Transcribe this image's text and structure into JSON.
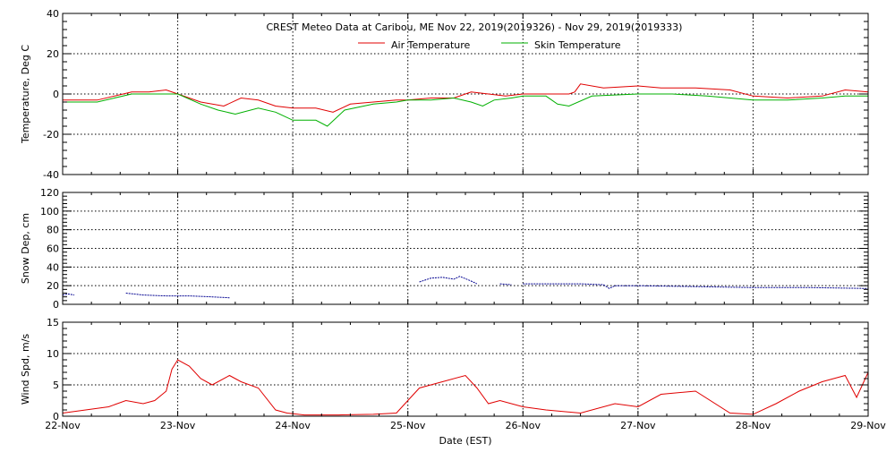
{
  "chart_data": [
    {
      "type": "line",
      "title": "CREST Meteo Data at Caribou, ME   Nov 22, 2019(2019326) - Nov 29, 2019(2019333)",
      "xlabel": "Date (EST)",
      "ylabel": "Temperature, Deg C",
      "xlim": [
        0,
        7
      ],
      "ylim": [
        -40,
        40
      ],
      "yticks": [
        -40,
        -20,
        0,
        20,
        40
      ],
      "grid": true,
      "legend": "top-center",
      "series": [
        {
          "name": "Air Temperature",
          "color": "#e00000",
          "x": [
            0.0,
            0.3,
            0.6,
            0.75,
            0.9,
            1.0,
            1.2,
            1.4,
            1.55,
            1.7,
            1.85,
            2.0,
            2.2,
            2.35,
            2.5,
            2.7,
            2.9,
            3.0,
            3.2,
            3.4,
            3.55,
            3.7,
            3.85,
            4.0,
            4.2,
            4.4,
            4.45,
            4.5,
            4.7,
            5.0,
            5.2,
            5.5,
            5.8,
            6.0,
            6.3,
            6.6,
            6.8,
            7.0
          ],
          "y": [
            -3,
            -3,
            1,
            1,
            2,
            0,
            -4,
            -6,
            -2,
            -3,
            -6,
            -7,
            -7,
            -9,
            -5,
            -4,
            -3,
            -3,
            -2,
            -2,
            1,
            0,
            -1,
            0,
            0,
            0,
            1,
            5,
            3,
            4,
            3,
            3,
            2,
            -1,
            -2,
            -1,
            2,
            1
          ]
        },
        {
          "name": "Skin Temperature",
          "color": "#00b000",
          "x": [
            0.0,
            0.3,
            0.6,
            0.75,
            0.9,
            1.0,
            1.2,
            1.35,
            1.5,
            1.7,
            1.85,
            2.0,
            2.2,
            2.3,
            2.45,
            2.7,
            2.9,
            3.0,
            3.2,
            3.4,
            3.55,
            3.65,
            3.75,
            3.9,
            4.0,
            4.2,
            4.3,
            4.4,
            4.6,
            5.0,
            5.3,
            5.6,
            5.8,
            6.0,
            6.3,
            6.6,
            6.8,
            7.0
          ],
          "y": [
            -4,
            -4,
            0,
            0,
            0,
            0,
            -5,
            -8,
            -10,
            -7,
            -9,
            -13,
            -13,
            -16,
            -8,
            -5,
            -4,
            -3,
            -3,
            -2,
            -4,
            -6,
            -3,
            -2,
            -1,
            -1,
            -5,
            -6,
            -1,
            0,
            0,
            -1,
            -2,
            -3,
            -3,
            -2,
            -1,
            -1
          ]
        }
      ]
    },
    {
      "type": "line",
      "ylabel": "Snow Dep, cm",
      "xlim": [
        0,
        7
      ],
      "ylim": [
        0,
        120
      ],
      "yticks": [
        0,
        20,
        40,
        60,
        80,
        100,
        120
      ],
      "grid": true,
      "series": [
        {
          "color": "#000090",
          "segments": [
            {
              "x": [
                0.0,
                0.05,
                0.1
              ],
              "y": [
                10,
                11,
                10
              ]
            },
            {
              "x": [
                0.55,
                0.7,
                0.9,
                1.1,
                1.3,
                1.45
              ],
              "y": [
                12,
                10,
                9,
                9,
                8,
                7
              ]
            },
            {
              "x": [
                3.1,
                3.2,
                3.3,
                3.4,
                3.45,
                3.55,
                3.6
              ],
              "y": [
                24,
                28,
                29,
                27,
                30,
                25,
                22
              ]
            },
            {
              "x": [
                3.8,
                3.9
              ],
              "y": [
                22,
                21
              ]
            },
            {
              "x": [
                4.0,
                4.2,
                4.5,
                4.7,
                4.75,
                4.8,
                5.0,
                5.5,
                6.0,
                6.5,
                7.0
              ],
              "y": [
                22,
                22,
                22,
                21,
                17,
                20,
                20,
                19,
                18,
                18,
                17
              ]
            }
          ]
        }
      ]
    },
    {
      "type": "line",
      "xlabel": "Date (EST)",
      "ylabel": "Wind Spd, m/s",
      "xlim": [
        0,
        7
      ],
      "ylim": [
        0,
        15
      ],
      "yticks": [
        0,
        5,
        10,
        15
      ],
      "xticks": [
        "22-Nov",
        "23-Nov",
        "24-Nov",
        "25-Nov",
        "26-Nov",
        "27-Nov",
        "28-Nov",
        "29-Nov"
      ],
      "grid": true,
      "series": [
        {
          "color": "#e00000",
          "x": [
            0.0,
            0.2,
            0.4,
            0.55,
            0.7,
            0.8,
            0.9,
            0.95,
            1.0,
            1.1,
            1.2,
            1.3,
            1.45,
            1.55,
            1.7,
            1.85,
            1.95,
            2.1,
            2.4,
            2.7,
            2.9,
            3.0,
            3.1,
            3.3,
            3.5,
            3.6,
            3.7,
            3.8,
            4.0,
            4.2,
            4.5,
            4.8,
            5.0,
            5.2,
            5.5,
            5.8,
            6.0,
            6.2,
            6.4,
            6.6,
            6.8,
            6.9,
            7.0
          ],
          "y": [
            0.5,
            1.0,
            1.5,
            2.5,
            2.0,
            2.5,
            4.0,
            7.5,
            9.0,
            8.0,
            6.0,
            5.0,
            6.5,
            5.5,
            4.5,
            1.0,
            0.5,
            0.2,
            0.2,
            0.3,
            0.5,
            2.5,
            4.5,
            5.5,
            6.5,
            4.5,
            2.0,
            2.5,
            1.5,
            1.0,
            0.5,
            2.0,
            1.5,
            3.5,
            4.0,
            0.5,
            0.3,
            2.0,
            4.0,
            5.5,
            6.5,
            3.0,
            7.0
          ]
        }
      ]
    }
  ]
}
